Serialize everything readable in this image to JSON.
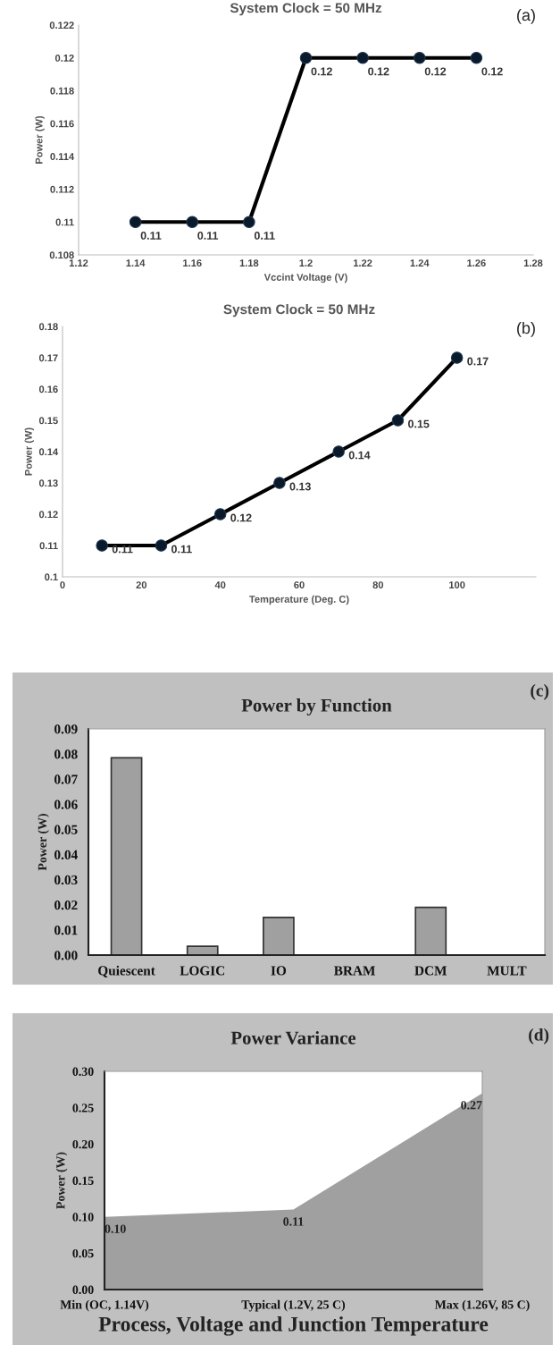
{
  "chart_data": [
    {
      "type": "line",
      "title": "System Clock = 50 MHz",
      "xlabel": "Vccint Voltage (V)",
      "ylabel": "Power (W)",
      "annotations": [
        "(a)"
      ],
      "x": [
        1.14,
        1.16,
        1.18,
        1.2,
        1.22,
        1.24,
        1.26
      ],
      "values": [
        0.11,
        0.11,
        0.11,
        0.12,
        0.12,
        0.12,
        0.12
      ],
      "color": "#000000",
      "marker": "circle",
      "data_labels": true,
      "xlim": [
        1.12,
        1.28
      ],
      "xticks": [
        1.12,
        1.14,
        1.16,
        1.18,
        1.2,
        1.22,
        1.24,
        1.26,
        1.28
      ],
      "ylim": [
        0.108,
        0.122
      ],
      "yticks": [
        0.108,
        0.11,
        0.112,
        0.114,
        0.116,
        0.118,
        0.12,
        0.122
      ]
    },
    {
      "type": "line",
      "title": "System Clock = 50 MHz",
      "xlabel": "Temperature (Deg. C)",
      "ylabel": "Power (W)",
      "annotations": [
        "(b)"
      ],
      "x": [
        10,
        25,
        40,
        55,
        70,
        85,
        100
      ],
      "values": [
        0.11,
        0.11,
        0.12,
        0.13,
        0.14,
        0.15,
        0.17
      ],
      "color": "#000000",
      "marker": "circle",
      "data_labels": true,
      "xlim": [
        0,
        120
      ],
      "xticks": [
        0,
        20,
        40,
        60,
        80,
        100
      ],
      "ylim": [
        0.1,
        0.18
      ],
      "yticks": [
        0.1,
        0.11,
        0.12,
        0.13,
        0.14,
        0.15,
        0.16,
        0.17,
        0.18
      ]
    },
    {
      "type": "bar",
      "title": "Power by Function",
      "ylabel": "Power (W)",
      "annotations": [
        "(c)"
      ],
      "categories": [
        "Quiescent",
        "LOGIC",
        "IO",
        "BRAM",
        "DCM",
        "MULT"
      ],
      "values": [
        0.0785,
        0.0035,
        0.015,
        0,
        0.019,
        0
      ],
      "color": "#a0a0a0",
      "ylim": [
        0,
        0.09
      ],
      "yticks": [
        {
          "value": 0,
          "label": "0.00"
        },
        {
          "value": 0.01,
          "label": "0.01"
        },
        {
          "value": 0.02,
          "label": "0.02"
        },
        {
          "value": 0.03,
          "label": "0.03"
        },
        {
          "value": 0.04,
          "label": "0.04"
        },
        {
          "value": 0.05,
          "label": "0.05"
        },
        {
          "value": 0.06,
          "label": "0.06"
        },
        {
          "value": 0.07,
          "label": "0.07"
        },
        {
          "value": 0.08,
          "label": "0.08"
        },
        {
          "value": 0.09,
          "label": "0.09"
        }
      ]
    },
    {
      "type": "area",
      "title": "Power Variance",
      "xlabel": "Process, Voltage and Junction Temperature",
      "ylabel": "Power (W)",
      "annotations": [
        "(d)"
      ],
      "categories": [
        "Min (OC, 1.14V)",
        "Typical (1.2V, 25 C)",
        "Max (1.26V, 85 C)"
      ],
      "values": [
        0.1,
        0.11,
        0.27
      ],
      "value_labels": [
        "0.10",
        "0.11",
        "0.27"
      ],
      "color": "#a0a0a0",
      "ylim": [
        0,
        0.3
      ],
      "yticks": [
        {
          "value": 0,
          "label": "0.00"
        },
        {
          "value": 0.05,
          "label": "0.05"
        },
        {
          "value": 0.1,
          "label": "0.10"
        },
        {
          "value": 0.15,
          "label": "0.15"
        },
        {
          "value": 0.2,
          "label": "0.20"
        },
        {
          "value": 0.25,
          "label": "0.25"
        },
        {
          "value": 0.3,
          "label": "0.30"
        }
      ]
    }
  ]
}
